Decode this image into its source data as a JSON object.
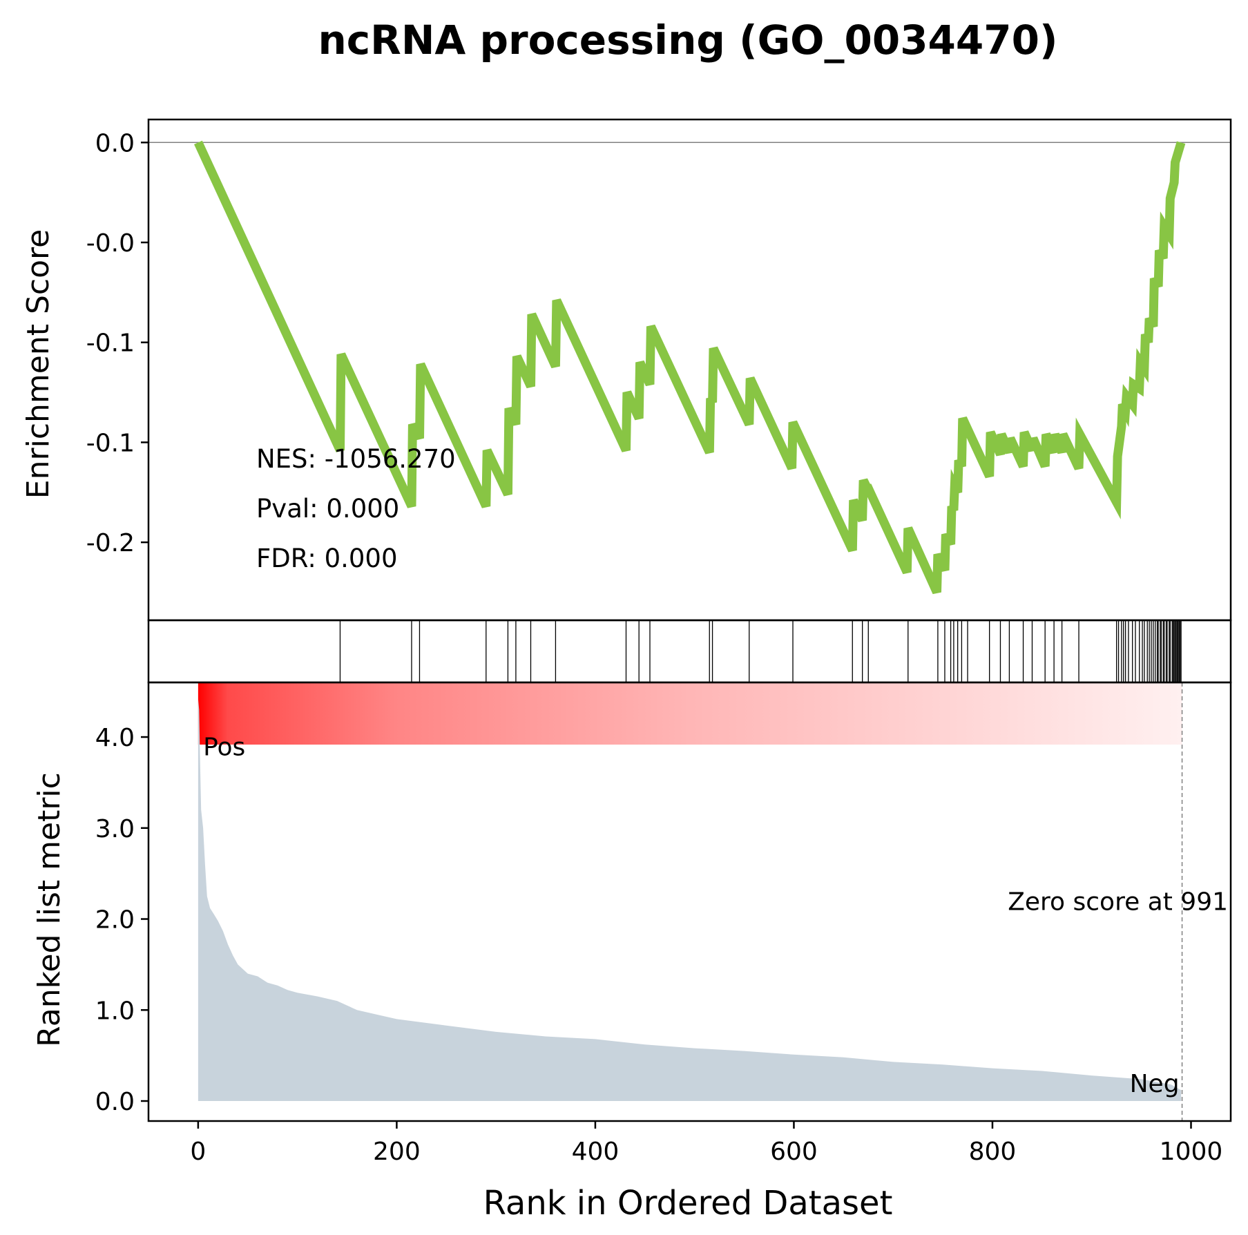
{
  "chart_data": {
    "type": "line",
    "title": "ncRNA processing (GO_0034470)",
    "xlabel": "Rank in Ordered Dataset",
    "es_panel": {
      "ylabel": "Enrichment Score",
      "ylim": [
        -0.239,
        0.0115
      ],
      "yticks": [
        0.0,
        -0.05,
        -0.1,
        -0.15,
        -0.2
      ],
      "ytick_labels": [
        "0.0",
        "-0.0",
        "-0.1",
        "-0.1",
        "-0.2"
      ],
      "line_color": "#88c544",
      "zero_line": true,
      "series": [
        {
          "x": [
            0,
            143,
            144,
            215,
            216,
            223,
            224,
            290,
            291,
            312,
            313,
            320,
            321,
            335,
            336,
            360,
            361,
            431,
            432,
            444,
            445,
            455,
            456,
            515,
            516,
            518,
            519,
            555,
            556,
            598,
            599,
            659,
            660,
            669,
            670,
            674,
            675,
            714,
            715,
            744,
            745,
            752,
            753,
            758,
            759,
            761,
            762,
            765,
            766,
            769,
            770,
            797,
            798,
            808,
            809,
            817,
            818,
            831,
            832,
            840,
            841,
            853,
            854,
            862,
            863,
            870,
            871,
            887,
            888,
            925,
            926,
            930,
            931,
            934,
            935,
            941,
            942,
            948,
            949,
            953,
            954,
            957,
            958,
            962,
            963,
            967,
            968,
            972,
            973,
            978,
            979,
            983,
            984,
            990
          ],
          "y": [
            0.0,
            -0.154,
            -0.106,
            -0.182,
            -0.141,
            -0.148,
            -0.111,
            -0.182,
            -0.154,
            -0.176,
            -0.133,
            -0.141,
            -0.107,
            -0.122,
            -0.086,
            -0.112,
            -0.079,
            -0.154,
            -0.125,
            -0.138,
            -0.11,
            -0.121,
            -0.092,
            -0.155,
            -0.128,
            -0.13,
            -0.103,
            -0.141,
            -0.118,
            -0.163,
            -0.14,
            -0.204,
            -0.179,
            -0.189,
            -0.169,
            -0.173,
            -0.173,
            -0.215,
            -0.193,
            -0.225,
            -0.206,
            -0.214,
            -0.196,
            -0.201,
            -0.182,
            -0.184,
            -0.172,
            -0.175,
            -0.159,
            -0.162,
            -0.138,
            -0.167,
            -0.145,
            -0.156,
            -0.146,
            -0.155,
            -0.148,
            -0.162,
            -0.145,
            -0.154,
            -0.148,
            -0.162,
            -0.146,
            -0.155,
            -0.146,
            -0.155,
            -0.146,
            -0.163,
            -0.146,
            -0.18,
            -0.157,
            -0.142,
            -0.131,
            -0.134,
            -0.127,
            -0.131,
            -0.121,
            -0.123,
            -0.11,
            -0.113,
            -0.096,
            -0.1,
            -0.088,
            -0.092,
            -0.068,
            -0.072,
            -0.054,
            -0.058,
            -0.042,
            -0.046,
            -0.028,
            -0.02,
            -0.01,
            0.0
          ]
        }
      ],
      "annotations": [
        "NES: -1056.270",
        "Pval: 0.000",
        "FDR: 0.000"
      ]
    },
    "hits_panel": {
      "hits": [
        143,
        215,
        223,
        290,
        312,
        320,
        335,
        360,
        431,
        444,
        455,
        515,
        518,
        555,
        599,
        659,
        669,
        675,
        715,
        745,
        752,
        758,
        761,
        765,
        769,
        775,
        797,
        808,
        817,
        831,
        840,
        853,
        862,
        870,
        887,
        925,
        927,
        930,
        932,
        934,
        937,
        941,
        944,
        948,
        951,
        953,
        956,
        958,
        960,
        962,
        964,
        966,
        967,
        969,
        970,
        972,
        973,
        975,
        976,
        978,
        979,
        981,
        982,
        983,
        984,
        985,
        986,
        987,
        988,
        989,
        990
      ]
    },
    "ranked_panel": {
      "ylabel": "Ranked list metric",
      "ylim": [
        -0.22,
        4.6
      ],
      "yticks": [
        0.0,
        1.0,
        2.0,
        3.0,
        4.0
      ],
      "ytick_labels": [
        "0.0",
        "1.0",
        "2.0",
        "3.0",
        "4.0"
      ],
      "fill_color": "#c8d3dc",
      "gradient_colors": [
        "#ff0000",
        "#fff0f0"
      ],
      "metric_points": [
        [
          0,
          4.42
        ],
        [
          1,
          4.3
        ],
        [
          2,
          3.7
        ],
        [
          3,
          3.2
        ],
        [
          5,
          3.0
        ],
        [
          7,
          2.6
        ],
        [
          9,
          2.25
        ],
        [
          12,
          2.12
        ],
        [
          16,
          2.05
        ],
        [
          20,
          1.98
        ],
        [
          25,
          1.87
        ],
        [
          30,
          1.72
        ],
        [
          35,
          1.6
        ],
        [
          40,
          1.5
        ],
        [
          45,
          1.45
        ],
        [
          50,
          1.4
        ],
        [
          60,
          1.37
        ],
        [
          70,
          1.3
        ],
        [
          80,
          1.27
        ],
        [
          90,
          1.22
        ],
        [
          100,
          1.19
        ],
        [
          120,
          1.15
        ],
        [
          140,
          1.1
        ],
        [
          160,
          1.0
        ],
        [
          180,
          0.95
        ],
        [
          200,
          0.9
        ],
        [
          250,
          0.83
        ],
        [
          300,
          0.76
        ],
        [
          350,
          0.71
        ],
        [
          400,
          0.68
        ],
        [
          450,
          0.62
        ],
        [
          500,
          0.58
        ],
        [
          550,
          0.55
        ],
        [
          600,
          0.51
        ],
        [
          650,
          0.48
        ],
        [
          700,
          0.43
        ],
        [
          750,
          0.4
        ],
        [
          800,
          0.36
        ],
        [
          850,
          0.33
        ],
        [
          900,
          0.28
        ],
        [
          950,
          0.24
        ],
        [
          980,
          0.18
        ],
        [
          990,
          0.12
        ]
      ],
      "pos_label": "Pos",
      "neg_label": "Neg",
      "pos_color": "#ff0000",
      "neg_color": "#0000ff",
      "zero_score_rank": 991,
      "zero_score_label": "Zero score at 991"
    },
    "xlim": [
      -50,
      1040
    ],
    "xticks": [
      0,
      200,
      400,
      600,
      800,
      1000
    ],
    "xtick_labels": [
      "0",
      "200",
      "400",
      "600",
      "800",
      "1000"
    ]
  }
}
